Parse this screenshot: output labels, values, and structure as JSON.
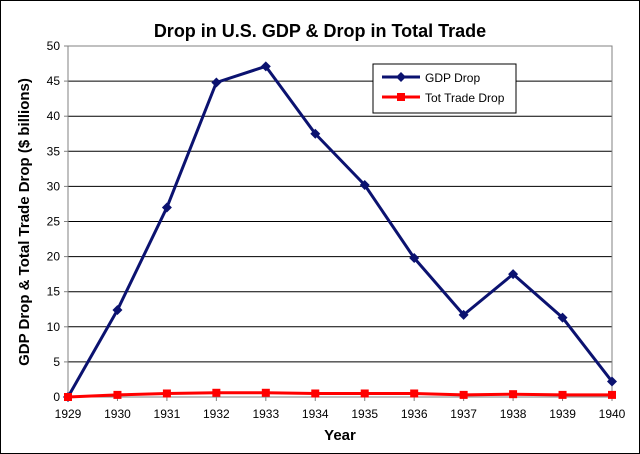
{
  "chart_data": {
    "type": "line",
    "title": "Drop in U.S. GDP & Drop in Total Trade",
    "xlabel": "Year",
    "ylabel": "GDP Drop & Total Trade Drop ($ billions)",
    "x": [
      "1929",
      "1930",
      "1931",
      "1932",
      "1933",
      "1934",
      "1935",
      "1936",
      "1937",
      "1938",
      "1939",
      "1940"
    ],
    "ylim": [
      0,
      50
    ],
    "yticks": [
      0,
      5,
      10,
      15,
      20,
      25,
      30,
      35,
      40,
      45,
      50
    ],
    "grid": true,
    "legend_position": "top-right",
    "series": [
      {
        "name": "GDP Drop",
        "color": "#0b1270",
        "marker": "diamond",
        "values": [
          0,
          12.4,
          27.0,
          44.8,
          47.1,
          37.5,
          30.2,
          19.8,
          11.7,
          17.5,
          11.3,
          2.2
        ]
      },
      {
        "name": "Tot Trade  Drop",
        "color": "#ff0000",
        "marker": "square",
        "values": [
          0,
          0.3,
          0.5,
          0.6,
          0.6,
          0.5,
          0.5,
          0.5,
          0.3,
          0.4,
          0.3,
          0.3
        ]
      }
    ]
  }
}
